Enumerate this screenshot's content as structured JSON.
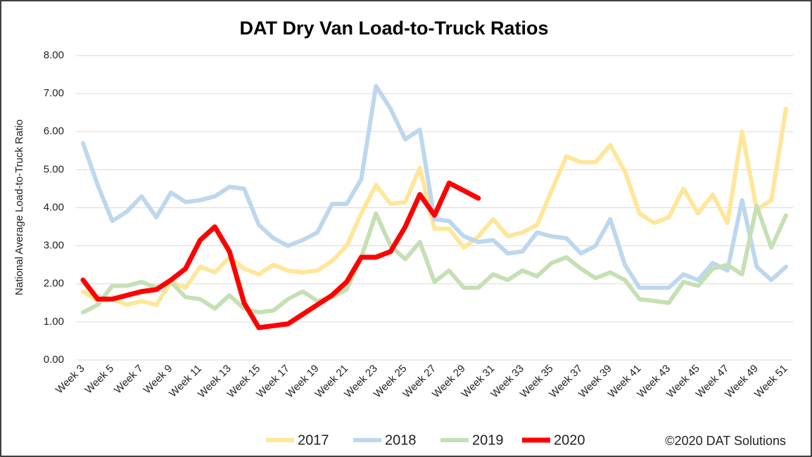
{
  "chart_data": {
    "type": "line",
    "title": "DAT Dry Van Load-to-Truck Ratios",
    "y_label": "National Average Load-to-Truck Ratio",
    "credit": "©2020 DAT Solutions",
    "categories": [
      "Week 3",
      null,
      "Week 5",
      null,
      "Week 7",
      null,
      "Week 9",
      null,
      "Week 11",
      null,
      "Week 13",
      null,
      "Week 15",
      null,
      "Week 17",
      null,
      "Week 19",
      null,
      "Week 21",
      null,
      "Week 23",
      null,
      "Week 25",
      null,
      "Week 27",
      null,
      "Week 29",
      null,
      "Week 31",
      null,
      "Week 33",
      null,
      "Week 35",
      null,
      "Week 37",
      null,
      "Week 39",
      null,
      "Week 41",
      null,
      "Week 43",
      null,
      "Week 45",
      null,
      "Week 47",
      null,
      "Week 49",
      null,
      "Week 51"
    ],
    "ylim": [
      0,
      8
    ],
    "yticks": [
      {
        "value": 0,
        "label": "0.00"
      },
      {
        "value": 1,
        "label": "1.00"
      },
      {
        "value": 2,
        "label": "2.00"
      },
      {
        "value": 3,
        "label": "3.00"
      },
      {
        "value": 4,
        "label": "4.00"
      },
      {
        "value": 5,
        "label": "5.00"
      },
      {
        "value": 6,
        "label": "6.00"
      },
      {
        "value": 7,
        "label": "7.00"
      },
      {
        "value": 8,
        "label": "8.00"
      }
    ],
    "grid": true,
    "legend": "bottom",
    "series": [
      {
        "name": "2017",
        "color": "#ffe699",
        "values": [
          1.8,
          1.55,
          1.6,
          1.45,
          1.55,
          1.45,
          2.05,
          1.9,
          2.45,
          2.3,
          2.7,
          2.4,
          2.25,
          2.5,
          2.35,
          2.3,
          2.35,
          2.6,
          3.0,
          3.85,
          4.6,
          4.1,
          4.15,
          5.05,
          3.45,
          3.45,
          2.95,
          3.25,
          3.7,
          3.25,
          3.35,
          3.55,
          4.45,
          5.35,
          5.2,
          5.2,
          5.65,
          4.95,
          3.85,
          3.6,
          3.75,
          4.5,
          3.85,
          4.35,
          3.6,
          6.0,
          3.95,
          4.2,
          6.6
        ]
      },
      {
        "name": "2018",
        "color": "#bdd7ee",
        "values": [
          5.7,
          4.6,
          3.65,
          3.9,
          4.3,
          3.75,
          4.4,
          4.15,
          4.2,
          4.3,
          4.55,
          4.5,
          3.55,
          3.2,
          3.0,
          3.15,
          3.35,
          4.1,
          4.1,
          4.75,
          7.2,
          6.6,
          5.8,
          6.05,
          3.7,
          3.65,
          3.25,
          3.1,
          3.15,
          2.8,
          2.85,
          3.35,
          3.25,
          3.2,
          2.8,
          3.0,
          3.7,
          2.5,
          1.9,
          1.9,
          1.9,
          2.25,
          2.1,
          2.55,
          2.35,
          4.2,
          2.45,
          2.1,
          2.45
        ]
      },
      {
        "name": "2019",
        "color": "#c5e0b4",
        "values": [
          1.25,
          1.45,
          1.95,
          1.95,
          2.05,
          1.9,
          2.05,
          1.65,
          1.6,
          1.35,
          1.7,
          1.35,
          1.25,
          1.3,
          1.6,
          1.8,
          1.55,
          1.65,
          1.85,
          2.7,
          3.85,
          3.0,
          2.65,
          3.1,
          2.05,
          2.35,
          1.9,
          1.9,
          2.25,
          2.1,
          2.35,
          2.2,
          2.55,
          2.7,
          2.4,
          2.15,
          2.3,
          2.1,
          1.6,
          1.55,
          1.5,
          2.05,
          1.95,
          2.4,
          2.5,
          2.25,
          4.05,
          2.95,
          3.8
        ]
      },
      {
        "name": "2020",
        "color": "#ff0000",
        "values": [
          2.1,
          1.6,
          1.6,
          1.7,
          1.8,
          1.85,
          2.1,
          2.4,
          3.15,
          3.5,
          2.85,
          1.5,
          0.85,
          0.9,
          0.95,
          1.2,
          1.45,
          1.7,
          2.05,
          2.7,
          2.7,
          2.85,
          3.5,
          4.35,
          3.8,
          4.65,
          4.45,
          4.25,
          null,
          null,
          null,
          null,
          null,
          null,
          null,
          null,
          null,
          null,
          null,
          null,
          null,
          null,
          null,
          null,
          null,
          null,
          null,
          null,
          null
        ]
      }
    ]
  }
}
